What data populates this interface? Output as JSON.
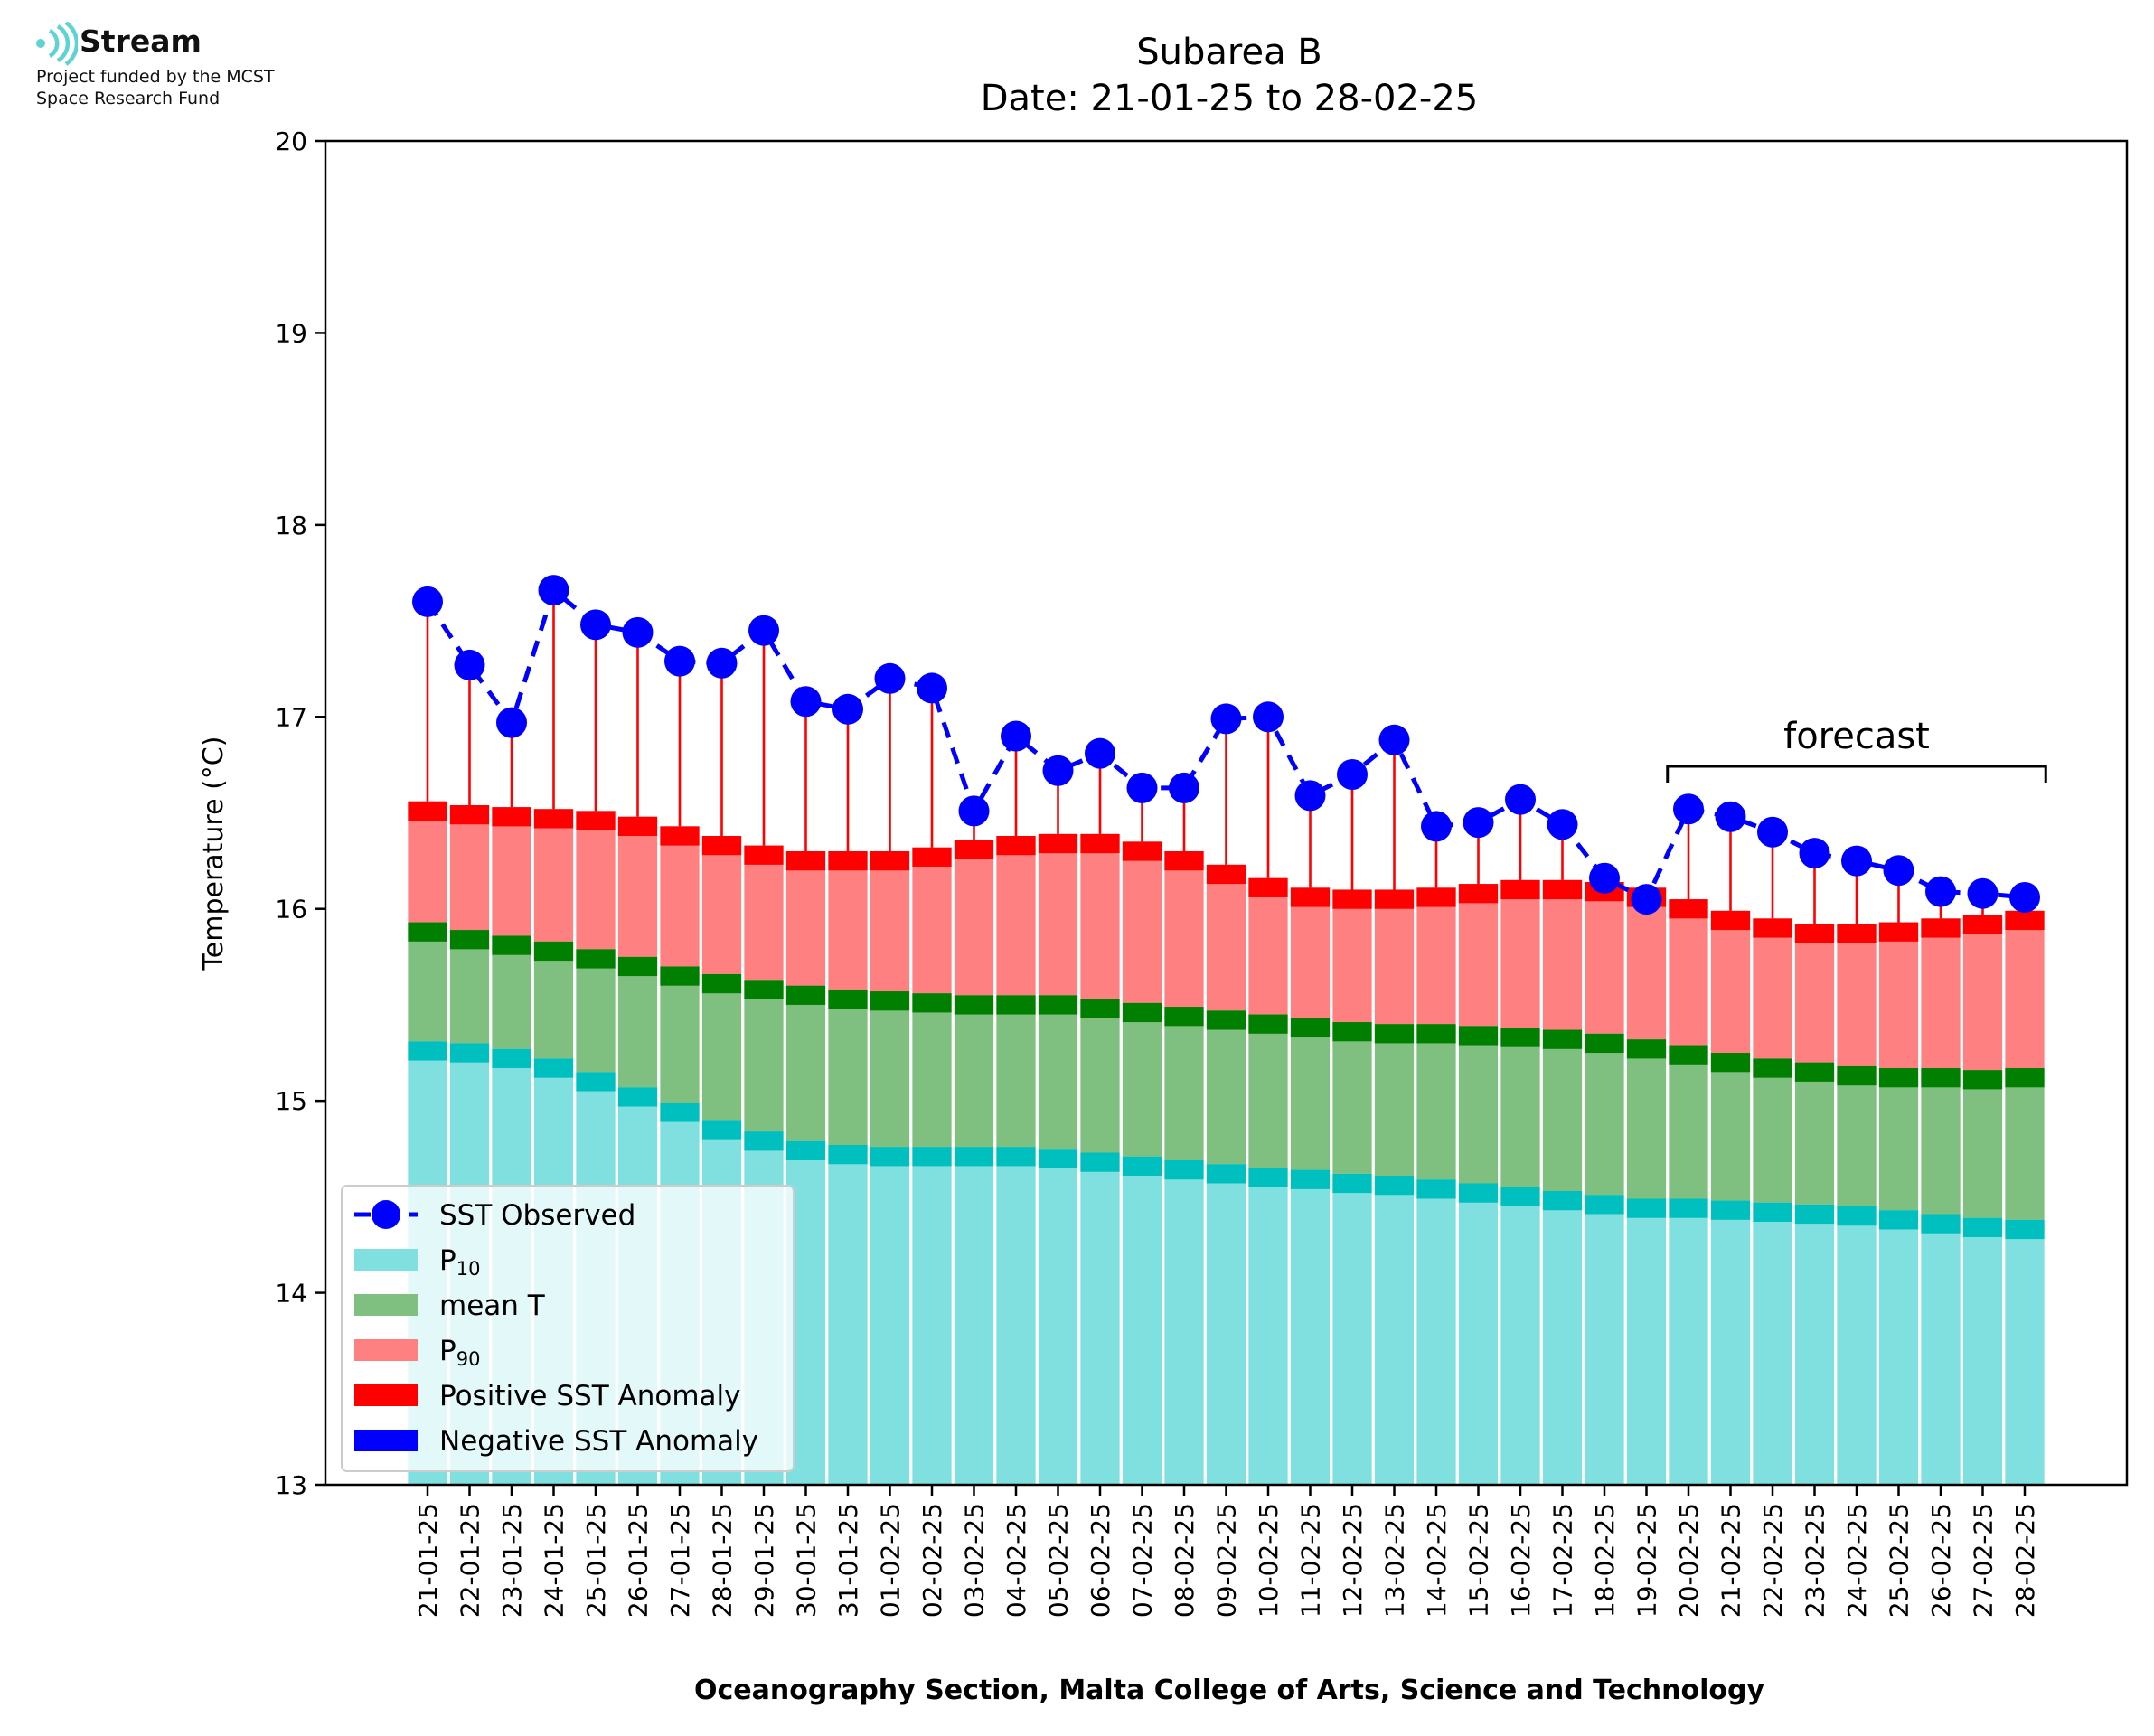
{
  "logo": {
    "name": "Stream",
    "line1": "Project funded by the MCST",
    "line2": "Space Research Fund"
  },
  "chart_data": {
    "type": "bar",
    "title": "Subarea B",
    "subtitle": "Date: 21-01-25 to 28-02-25",
    "xlabel": "Oceanography Section, Malta College of Arts, Science and Technology",
    "ylabel": "Temperature (°C)",
    "ylim": [
      13,
      20
    ],
    "yticks": [
      13,
      14,
      15,
      16,
      17,
      18,
      19,
      20
    ],
    "categories": [
      "21-01-25",
      "22-01-25",
      "23-01-25",
      "24-01-25",
      "25-01-25",
      "26-01-25",
      "27-01-25",
      "28-01-25",
      "29-01-25",
      "30-01-25",
      "31-01-25",
      "01-02-25",
      "02-02-25",
      "03-02-25",
      "04-02-25",
      "05-02-25",
      "06-02-25",
      "07-02-25",
      "08-02-25",
      "09-02-25",
      "10-02-25",
      "11-02-25",
      "12-02-25",
      "13-02-25",
      "14-02-25",
      "15-02-25",
      "16-02-25",
      "17-02-25",
      "18-02-25",
      "19-02-25",
      "20-02-25",
      "21-02-25",
      "22-02-25",
      "23-02-25",
      "24-02-25",
      "25-02-25",
      "26-02-25",
      "27-02-25",
      "28-02-25"
    ],
    "series": [
      {
        "name": "P10",
        "color": "#80dfdf",
        "values": [
          15.31,
          15.3,
          15.27,
          15.22,
          15.15,
          15.07,
          14.99,
          14.9,
          14.84,
          14.79,
          14.77,
          14.76,
          14.76,
          14.76,
          14.76,
          14.75,
          14.73,
          14.71,
          14.69,
          14.67,
          14.65,
          14.64,
          14.62,
          14.61,
          14.59,
          14.57,
          14.55,
          14.53,
          14.51,
          14.49,
          14.49,
          14.48,
          14.47,
          14.46,
          14.45,
          14.43,
          14.41,
          14.39,
          14.38
        ]
      },
      {
        "name": "mean T",
        "color": "#7fbf7f",
        "values": [
          15.93,
          15.89,
          15.86,
          15.83,
          15.79,
          15.75,
          15.7,
          15.66,
          15.63,
          15.6,
          15.58,
          15.57,
          15.56,
          15.55,
          15.55,
          15.55,
          15.53,
          15.51,
          15.49,
          15.47,
          15.45,
          15.43,
          15.41,
          15.4,
          15.4,
          15.39,
          15.38,
          15.37,
          15.35,
          15.32,
          15.29,
          15.25,
          15.22,
          15.2,
          15.18,
          15.17,
          15.17,
          15.16,
          15.17
        ]
      },
      {
        "name": "P90",
        "color": "#ff8080",
        "values": [
          16.56,
          16.54,
          16.53,
          16.52,
          16.51,
          16.48,
          16.43,
          16.38,
          16.33,
          16.3,
          16.3,
          16.3,
          16.32,
          16.36,
          16.38,
          16.39,
          16.39,
          16.35,
          16.3,
          16.23,
          16.16,
          16.11,
          16.1,
          16.1,
          16.11,
          16.13,
          16.15,
          16.15,
          16.14,
          16.11,
          16.05,
          15.99,
          15.95,
          15.92,
          15.92,
          15.93,
          15.95,
          15.97,
          15.99
        ]
      }
    ],
    "band_thickness": 0.1,
    "band_colors": {
      "P10": "#00bfbf",
      "mean T": "#007f00",
      "P90": "#ff0000"
    },
    "observed": {
      "name": "SST Observed",
      "color": "#0000ff",
      "values": [
        17.6,
        17.27,
        16.97,
        17.66,
        17.48,
        17.44,
        17.29,
        17.28,
        17.45,
        17.08,
        17.04,
        17.2,
        17.15,
        16.51,
        16.9,
        16.72,
        16.81,
        16.63,
        16.63,
        16.99,
        17.0,
        16.59,
        16.7,
        16.88,
        16.43,
        16.45,
        16.57,
        16.44,
        16.16,
        16.05,
        16.52,
        16.48,
        16.4,
        16.29,
        16.25,
        16.2,
        16.09,
        16.08,
        16.06
      ]
    },
    "anomaly_colors": {
      "positive": "#ff0000",
      "negative": "#0000ff"
    },
    "forecast": {
      "label": "forecast",
      "from": "20-02-25",
      "to": "28-02-25"
    },
    "legend": {
      "position": "lower-left",
      "entries": [
        {
          "label": "SST Observed",
          "sub": "",
          "kind": "line-marker",
          "color": "#0000ff"
        },
        {
          "label": "P",
          "sub": "10",
          "kind": "patch",
          "color": "#80dfdf"
        },
        {
          "label": "mean T",
          "sub": "",
          "kind": "patch",
          "color": "#7fbf7f"
        },
        {
          "label": "P",
          "sub": "90",
          "kind": "patch",
          "color": "#ff8080"
        },
        {
          "label": "Positive SST Anomaly",
          "sub": "",
          "kind": "patch",
          "color": "#ff0000"
        },
        {
          "label": "Negative SST Anomaly",
          "sub": "",
          "kind": "patch",
          "color": "#0000ff"
        }
      ]
    }
  }
}
